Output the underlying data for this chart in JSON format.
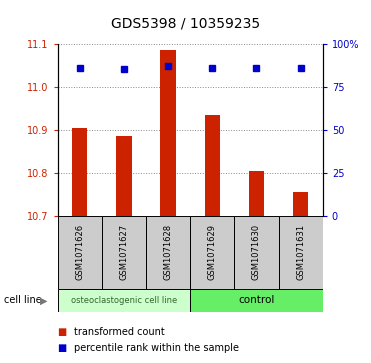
{
  "title": "GDS5398 / 10359235",
  "samples": [
    "GSM1071626",
    "GSM1071627",
    "GSM1071628",
    "GSM1071629",
    "GSM1071630",
    "GSM1071631"
  ],
  "bar_values": [
    10.905,
    10.885,
    11.085,
    10.935,
    10.805,
    10.755
  ],
  "bar_bottom": 10.7,
  "percentile_values": [
    86,
    85,
    87,
    86,
    86,
    86
  ],
  "ylim_left": [
    10.7,
    11.1
  ],
  "ylim_right": [
    0,
    100
  ],
  "yticks_left": [
    10.7,
    10.8,
    10.9,
    11.0,
    11.1
  ],
  "yticks_right": [
    0,
    25,
    50,
    75,
    100
  ],
  "ytick_labels_right": [
    "0",
    "25",
    "50",
    "75",
    "100%"
  ],
  "bar_color": "#cc2200",
  "dot_color": "#0000cc",
  "group1_label": "osteoclastogenic cell line",
  "group2_label": "control",
  "group1_indices": [
    0,
    1,
    2
  ],
  "group2_indices": [
    3,
    4,
    5
  ],
  "group_bg_color1": "#ccffcc",
  "group_bg_color2": "#66ee66",
  "sample_bg_color": "#cccccc",
  "cell_line_label": "cell line",
  "legend_bar_label": "transformed count",
  "legend_dot_label": "percentile rank within the sample",
  "grid_color": "#888888",
  "title_fontsize": 10,
  "tick_fontsize": 7,
  "label_fontsize": 7
}
